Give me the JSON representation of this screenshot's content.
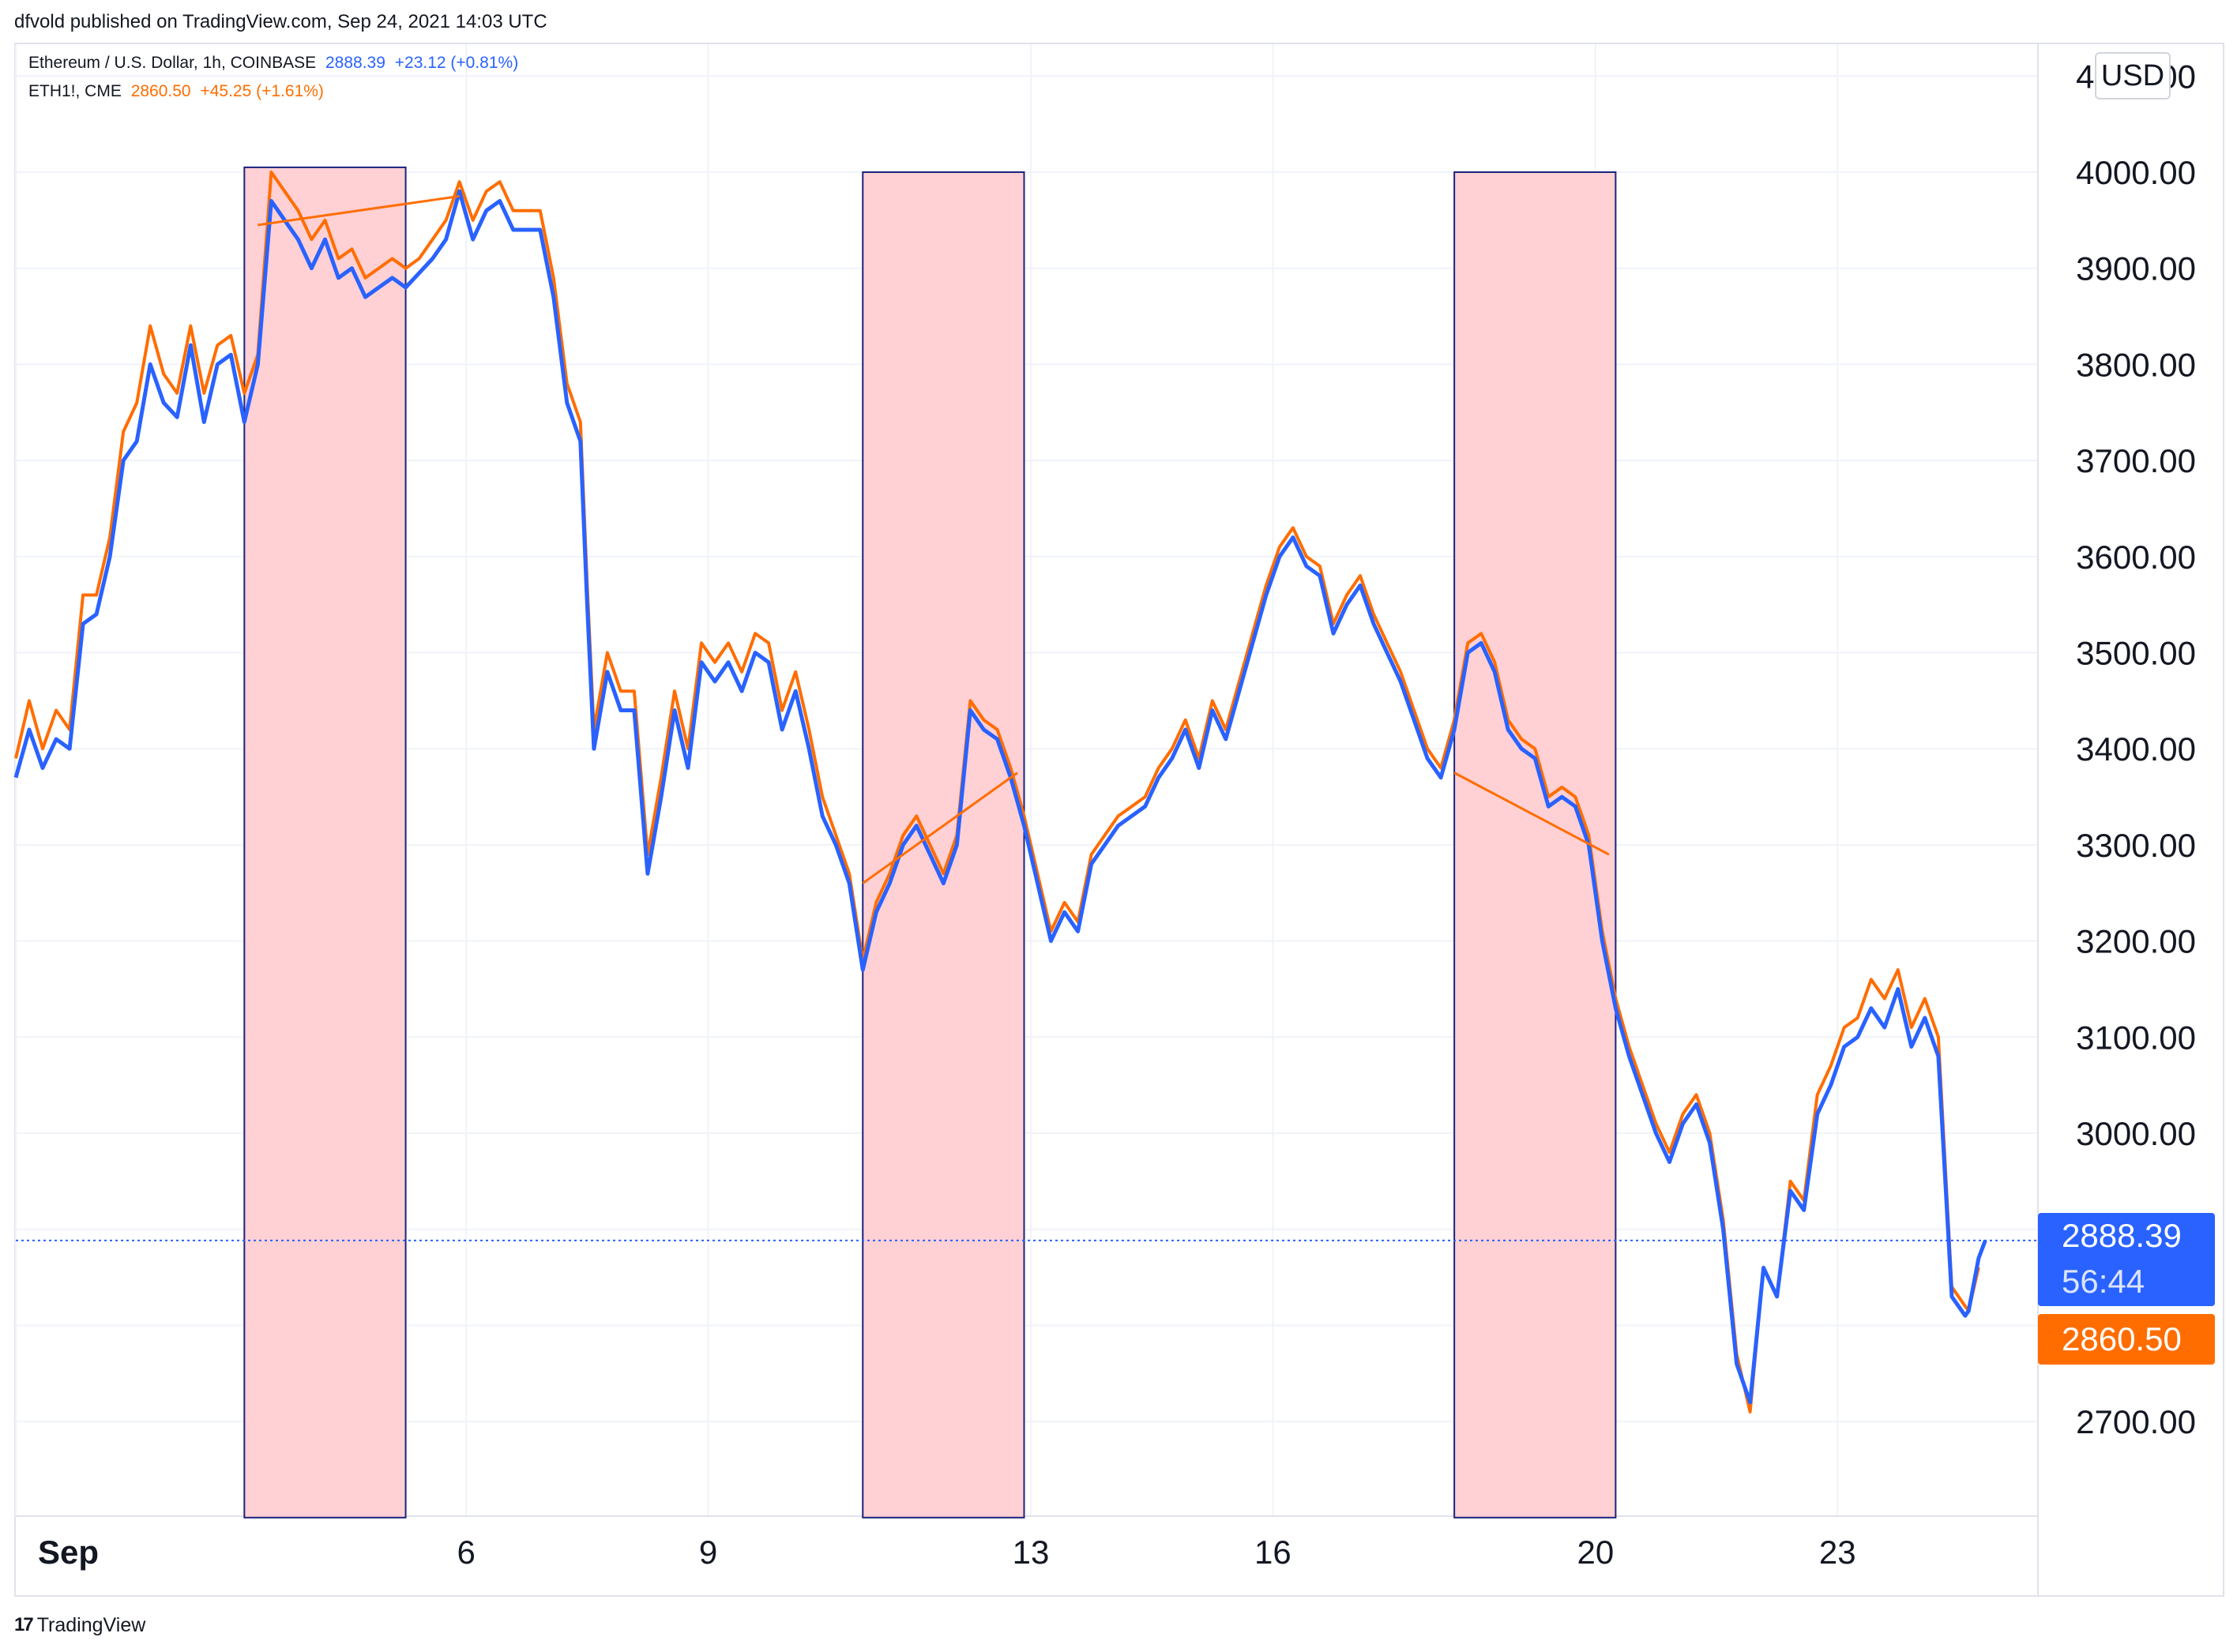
{
  "publisher": "dfvold published on TradingView.com, Sep 24, 2021 14:03 UTC",
  "legend": [
    {
      "name": "Ethereum / U.S. Dollar, 1h, COINBASE",
      "price": "2888.39",
      "change": "+23.12 (+0.81%)",
      "color": "#2962ff"
    },
    {
      "name": "ETH1!, CME",
      "price": "2860.50",
      "change": "+45.25 (+1.61%)",
      "color": "#ff6d00"
    }
  ],
  "currency": "USD",
  "price_tags": {
    "coinbase": "2888.39",
    "countdown": "56:44",
    "cme": "2860.50"
  },
  "branding": "TradingView",
  "colors": {
    "coinbase": "#2962ff",
    "cme": "#ff6d00",
    "highlight_fill": "#ffcdd2",
    "highlight_border": "#1a237e",
    "grid": "#f0f3fa"
  },
  "chart_data": {
    "type": "line",
    "title": "",
    "xlabel": "",
    "ylabel": "",
    "ylim": [
      2600,
      4100
    ],
    "yticks": [
      "2700.00",
      "3000.00",
      "3100.00",
      "3200.00",
      "3300.00",
      "3400.00",
      "3500.00",
      "3600.00",
      "3700.00",
      "3800.00",
      "3900.00",
      "4000.00"
    ],
    "ytick_top_partial": "4100.00",
    "xlim": [
      0,
      600
    ],
    "xticks": [
      {
        "x": 0,
        "label": "Sep"
      },
      {
        "x": 134,
        "label": "6"
      },
      {
        "x": 206,
        "label": "9"
      },
      {
        "x": 302,
        "label": "13"
      },
      {
        "x": 374,
        "label": "16"
      },
      {
        "x": 470,
        "label": "20"
      },
      {
        "x": 542,
        "label": "23"
      }
    ],
    "x_unit": "hours since Sep 1 00:00",
    "grid": true,
    "last_price_line": 2888.39,
    "series": [
      {
        "name": "Ethereum / U.S. Dollar, 1h, COINBASE",
        "color": "#2962ff",
        "x": [
          0,
          4,
          8,
          12,
          16,
          20,
          24,
          28,
          32,
          36,
          40,
          44,
          48,
          52,
          56,
          60,
          64,
          68,
          72,
          76,
          80,
          84,
          88,
          92,
          96,
          100,
          104,
          108,
          112,
          116,
          120,
          124,
          128,
          132,
          136,
          140,
          144,
          148,
          152,
          156,
          160,
          164,
          168,
          170,
          172,
          176,
          180,
          184,
          188,
          192,
          196,
          200,
          204,
          208,
          212,
          216,
          220,
          224,
          228,
          232,
          236,
          240,
          244,
          248,
          252,
          256,
          260,
          264,
          268,
          272,
          276,
          280,
          284,
          288,
          292,
          296,
          300,
          304,
          308,
          312,
          316,
          320,
          324,
          328,
          332,
          336,
          340,
          344,
          348,
          352,
          356,
          360,
          364,
          368,
          372,
          376,
          380,
          384,
          388,
          392,
          396,
          400,
          404,
          408,
          412,
          416,
          420,
          424,
          428,
          432,
          436,
          440,
          444,
          448,
          452,
          456,
          460,
          464,
          468,
          472,
          476,
          480,
          484,
          488,
          492,
          496,
          500,
          504,
          508,
          512,
          516,
          520,
          524,
          528,
          532,
          536,
          540,
          544,
          548,
          552,
          556,
          560,
          564,
          568,
          572,
          576,
          580,
          581,
          584,
          586
        ],
        "values": [
          3370,
          3420,
          3380,
          3410,
          3400,
          3530,
          3540,
          3600,
          3700,
          3720,
          3800,
          3760,
          3745,
          3820,
          3740,
          3800,
          3810,
          3740,
          3800,
          3970,
          3950,
          3930,
          3900,
          3930,
          3890,
          3900,
          3870,
          3880,
          3890,
          3880,
          3895,
          3910,
          3930,
          3980,
          3930,
          3960,
          3970,
          3940,
          3940,
          3940,
          3870,
          3760,
          3720,
          3550,
          3400,
          3480,
          3440,
          3440,
          3270,
          3350,
          3440,
          3380,
          3490,
          3470,
          3490,
          3460,
          3500,
          3490,
          3420,
          3460,
          3400,
          3330,
          3300,
          3260,
          3170,
          3230,
          3260,
          3300,
          3320,
          3290,
          3260,
          3300,
          3440,
          3420,
          3410,
          3370,
          3320,
          3260,
          3200,
          3230,
          3210,
          3280,
          3300,
          3320,
          3330,
          3340,
          3370,
          3390,
          3420,
          3380,
          3440,
          3410,
          3460,
          3510,
          3560,
          3600,
          3620,
          3590,
          3580,
          3520,
          3550,
          3570,
          3530,
          3500,
          3470,
          3430,
          3390,
          3370,
          3420,
          3500,
          3510,
          3480,
          3420,
          3400,
          3390,
          3340,
          3350,
          3340,
          3300,
          3200,
          3130,
          3080,
          3040,
          3000,
          2970,
          3010,
          3030,
          2990,
          2900,
          2760,
          2720,
          2860,
          2830,
          2940,
          2920,
          3020,
          3050,
          3090,
          3100,
          3130,
          3110,
          3150,
          3090,
          3120,
          3080,
          2830,
          2810,
          2815,
          2870,
          2888.39
        ]
      },
      {
        "name": "ETH1!, CME",
        "color": "#ff6d00",
        "x": [
          0,
          4,
          8,
          12,
          16,
          20,
          24,
          28,
          32,
          36,
          40,
          44,
          48,
          52,
          56,
          60,
          64,
          68,
          72,
          76,
          80,
          84,
          88,
          92,
          96,
          100,
          104,
          108,
          112,
          116,
          120,
          124,
          128,
          132,
          136,
          140,
          144,
          148,
          152,
          156,
          160,
          164,
          168,
          170,
          172,
          176,
          180,
          184,
          188,
          192,
          196,
          200,
          204,
          208,
          212,
          216,
          220,
          224,
          228,
          232,
          236,
          240,
          244,
          248,
          252,
          256,
          260,
          264,
          268,
          272,
          276,
          280,
          284,
          288,
          292,
          296,
          300,
          304,
          308,
          312,
          316,
          320,
          324,
          328,
          332,
          336,
          340,
          344,
          348,
          352,
          356,
          360,
          364,
          368,
          372,
          376,
          380,
          384,
          388,
          392,
          396,
          400,
          404,
          408,
          412,
          416,
          420,
          424,
          428,
          432,
          436,
          440,
          444,
          448,
          452,
          456,
          460,
          464,
          468,
          472,
          476,
          480,
          484,
          488,
          492,
          496,
          500,
          504,
          508,
          512,
          516,
          520,
          524,
          528,
          532,
          536,
          540,
          544,
          548,
          552,
          556,
          560,
          564,
          568,
          572,
          576,
          580,
          581,
          584
        ],
        "values": [
          3390,
          3450,
          3400,
          3440,
          3420,
          3560,
          3560,
          3620,
          3730,
          3760,
          3840,
          3790,
          3770,
          3840,
          3770,
          3820,
          3830,
          3770,
          3810,
          4000,
          3980,
          3960,
          3930,
          3950,
          3910,
          3920,
          3890,
          3900,
          3910,
          3900,
          3910,
          3930,
          3950,
          3990,
          3950,
          3980,
          3990,
          3960,
          3960,
          3960,
          3890,
          3780,
          3740,
          3570,
          3420,
          3500,
          3460,
          3460,
          3290,
          3370,
          3460,
          3400,
          3510,
          3490,
          3510,
          3480,
          3520,
          3510,
          3440,
          3480,
          3420,
          3350,
          3310,
          3270,
          3180,
          3240,
          3270,
          3310,
          3330,
          3300,
          3270,
          3310,
          3450,
          3430,
          3420,
          3380,
          3330,
          3270,
          3210,
          3240,
          3220,
          3290,
          3310,
          3330,
          3340,
          3350,
          3380,
          3400,
          3430,
          3390,
          3450,
          3420,
          3470,
          3520,
          3570,
          3610,
          3630,
          3600,
          3590,
          3530,
          3560,
          3580,
          3540,
          3510,
          3480,
          3440,
          3400,
          3380,
          3430,
          3510,
          3520,
          3490,
          3430,
          3410,
          3400,
          3350,
          3360,
          3350,
          3310,
          3210,
          3140,
          3090,
          3050,
          3010,
          2980,
          3020,
          3040,
          3000,
          2910,
          2770,
          2710,
          2860,
          2830,
          2950,
          2930,
          3040,
          3070,
          3110,
          3120,
          3160,
          3140,
          3170,
          3110,
          3140,
          3100,
          2840,
          2820,
          2815,
          2860.5
        ]
      }
    ],
    "highlight_boxes": [
      {
        "x": [
          68,
          116
        ],
        "y": [
          2600,
          4005
        ]
      },
      {
        "x": [
          252,
          300
        ],
        "y": [
          2600,
          4000
        ]
      },
      {
        "x": [
          428,
          476
        ],
        "y": [
          2600,
          4000
        ]
      }
    ],
    "trend_lines": [
      {
        "from": [
          72,
          3945
        ],
        "to": [
          132,
          3975
        ]
      },
      {
        "from": [
          252,
          3260
        ],
        "to": [
          298,
          3375
        ]
      },
      {
        "from": [
          428,
          3375
        ],
        "to": [
          474,
          3290
        ]
      }
    ]
  }
}
